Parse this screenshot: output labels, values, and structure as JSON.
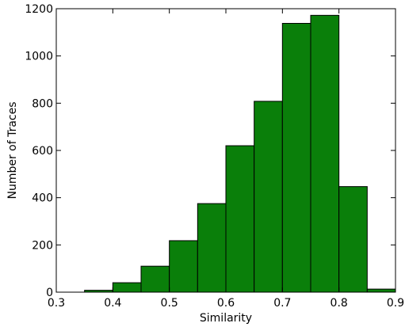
{
  "chart_data": {
    "type": "bar",
    "xlabel": "Similarity",
    "ylabel": "Number of Traces",
    "xlim": [
      0.3,
      0.9
    ],
    "ylim": [
      0,
      1200
    ],
    "xticks": [
      "0.3",
      "0.4",
      "0.5",
      "0.6",
      "0.7",
      "0.8",
      "0.9"
    ],
    "yticks": [
      "0",
      "200",
      "400",
      "600",
      "800",
      "1000",
      "1200"
    ],
    "bin_edges": [
      0.35,
      0.4,
      0.45,
      0.5,
      0.55,
      0.6,
      0.65,
      0.7,
      0.75,
      0.8,
      0.85,
      0.9
    ],
    "values": [
      8,
      40,
      110,
      218,
      375,
      620,
      808,
      1138,
      1172,
      447,
      13
    ],
    "bar_color": "#0a7f0a",
    "edge_color": "#000000",
    "grid": false
  }
}
